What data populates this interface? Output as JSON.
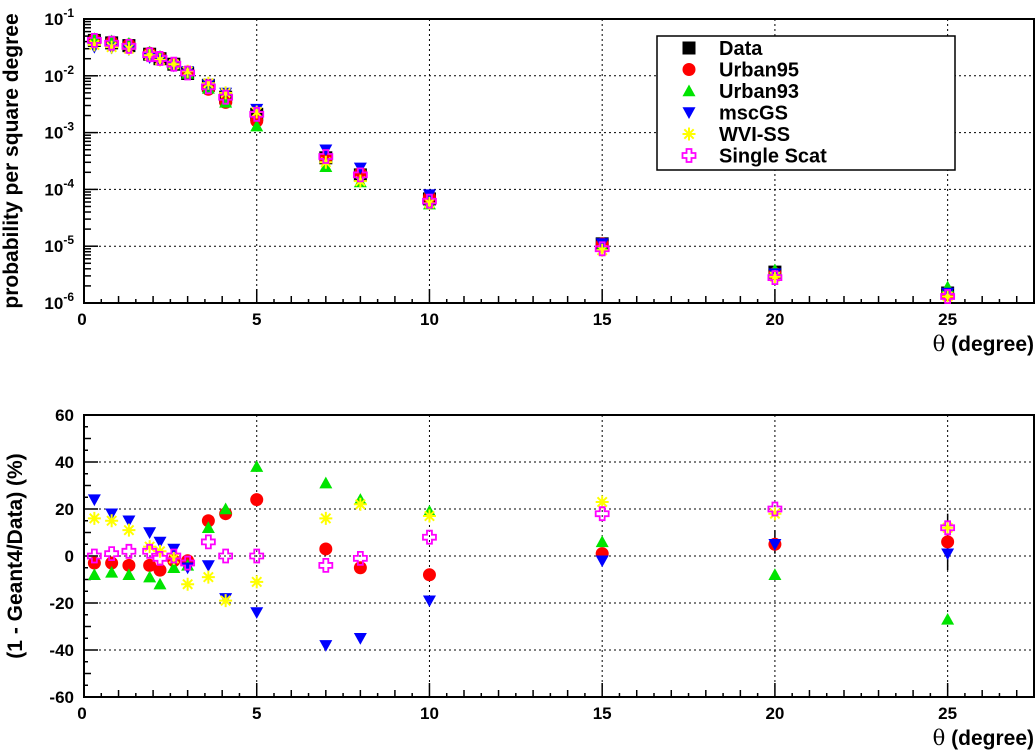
{
  "chart_data": [
    {
      "type": "scatter",
      "ylabel": "probability per square degree",
      "xlabel": "θ (degree)",
      "xlabel_symbol": "θ",
      "xlabel_text": " (degree)",
      "xlim": [
        0,
        27.5
      ],
      "ylim": [
        1e-06,
        0.1
      ],
      "yscale": "log",
      "grid": true,
      "x_ticks": [
        5,
        10,
        15,
        20,
        25
      ],
      "y_ticks": [
        {
          "base": "10",
          "exp": "-6",
          "value": 1e-06
        },
        {
          "base": "10",
          "exp": "-5",
          "value": 1e-05
        },
        {
          "base": "10",
          "exp": "-4",
          "value": 0.0001
        },
        {
          "base": "10",
          "exp": "-3",
          "value": 0.001
        },
        {
          "base": "10",
          "exp": "-2",
          "value": 0.01
        },
        {
          "base": "10",
          "exp": "-1",
          "value": 0.1
        }
      ],
      "legend": {
        "placement": "top-right",
        "entries": [
          "Data",
          "Urban95",
          "Urban93",
          "mscGS",
          "WVI-SS",
          "Single Scat"
        ]
      },
      "x": [
        0.3,
        0.8,
        1.3,
        1.9,
        2.2,
        2.6,
        3.0,
        3.6,
        4.1,
        5,
        7,
        8,
        10,
        15,
        20,
        25
      ],
      "series": [
        {
          "name": "Data",
          "marker": "square",
          "color": "#000000",
          "values": [
            0.042,
            0.038,
            0.034,
            0.024,
            0.02,
            0.016,
            0.011,
            0.0068,
            0.0042,
            0.0021,
            0.00036,
            0.00018,
            6.8e-05,
            1.1e-05,
            3.5e-06,
            1.5e-06
          ]
        },
        {
          "name": "Urban95",
          "marker": "circle",
          "color": "#ff0000",
          "values": [
            0.043,
            0.039,
            0.035,
            0.025,
            0.021,
            0.016,
            0.011,
            0.0058,
            0.0034,
            0.0016,
            0.00035,
            0.00019,
            7.3e-05,
            1.1e-05,
            3.3e-06,
            1.4e-06
          ]
        },
        {
          "name": "Urban93",
          "marker": "triangle-up",
          "color": "#00e400",
          "values": [
            0.045,
            0.041,
            0.037,
            0.026,
            0.022,
            0.016,
            0.011,
            0.006,
            0.0034,
            0.0013,
            0.00025,
            0.000135,
            5.5e-05,
            1e-05,
            3.8e-06,
            1.9e-06
          ]
        },
        {
          "name": "mscGS",
          "marker": "triangle-down",
          "color": "#0000ff",
          "values": [
            0.032,
            0.031,
            0.029,
            0.021,
            0.019,
            0.015,
            0.012,
            0.007,
            0.005,
            0.0026,
            0.0005,
            0.00024,
            8.1e-05,
            1.12e-05,
            3.3e-06,
            1.5e-06
          ]
        },
        {
          "name": "WVI-SS",
          "marker": "asterisk",
          "color": "#ffff00",
          "values": [
            0.035,
            0.032,
            0.03,
            0.023,
            0.019,
            0.016,
            0.012,
            0.0074,
            0.005,
            0.0023,
            0.0003,
            0.00014,
            5.7e-05,
            8.5e-06,
            2.9e-06,
            1.3e-06
          ]
        },
        {
          "name": "Single Scat",
          "marker": "open-cross",
          "color": "#ff00ff",
          "values": [
            0.042,
            0.0375,
            0.033,
            0.0235,
            0.0202,
            0.016,
            0.0112,
            0.0064,
            0.0042,
            0.0021,
            0.00038,
            0.00018,
            6.2e-05,
            9e-06,
            2.8e-06,
            1.3e-06
          ]
        }
      ]
    },
    {
      "type": "scatter",
      "ylabel": "(1 - Geant4/Data) (%)",
      "xlabel": "θ (degree)",
      "xlabel_symbol": "θ",
      "xlabel_text": " (degree)",
      "xlim": [
        0,
        27.5
      ],
      "ylim": [
        -60,
        60
      ],
      "grid": true,
      "x_ticks": [
        5,
        10,
        15,
        20,
        25
      ],
      "y_ticks": [
        -60,
        -40,
        -20,
        0,
        20,
        40,
        60
      ],
      "x": [
        0.3,
        0.8,
        1.3,
        1.9,
        2.2,
        2.6,
        3.0,
        3.6,
        4.1,
        5,
        7,
        8,
        10,
        15,
        20,
        25
      ],
      "error_bars": {
        "x": [
          20,
          25
        ],
        "y": [
          6,
          6
        ],
        "err": [
          5,
          12
        ]
      },
      "series": [
        {
          "name": "Urban95",
          "marker": "circle",
          "color": "#ff0000",
          "values": [
            -3,
            -3,
            -4,
            -4,
            -6,
            -2,
            -2,
            15,
            18,
            24,
            3,
            -5,
            -8,
            1,
            5,
            6
          ]
        },
        {
          "name": "Urban93",
          "marker": "triangle-up",
          "color": "#00e400",
          "values": [
            -8,
            -7,
            -8,
            -9,
            -12,
            -5,
            -4,
            12,
            20,
            38,
            31,
            24,
            19,
            6,
            -8,
            -27
          ]
        },
        {
          "name": "mscGS",
          "marker": "triangle-down",
          "color": "#0000ff",
          "values": [
            24,
            18,
            15,
            10,
            6,
            3,
            -5,
            -4,
            -18,
            -24,
            -38,
            -35,
            -19,
            -2,
            5,
            1
          ]
        },
        {
          "name": "WVI-SS",
          "marker": "asterisk",
          "color": "#ffff00",
          "values": [
            16,
            15,
            11,
            4,
            2,
            -1,
            -12,
            -9,
            -19,
            -11,
            16,
            22,
            17,
            23,
            18,
            12
          ]
        },
        {
          "name": "Single Scat",
          "marker": "open-cross",
          "color": "#ff00ff",
          "values": [
            0,
            1,
            2,
            2,
            -1,
            0,
            -3,
            6,
            0,
            0,
            -4,
            -1,
            8,
            18,
            20,
            12
          ]
        }
      ]
    }
  ]
}
